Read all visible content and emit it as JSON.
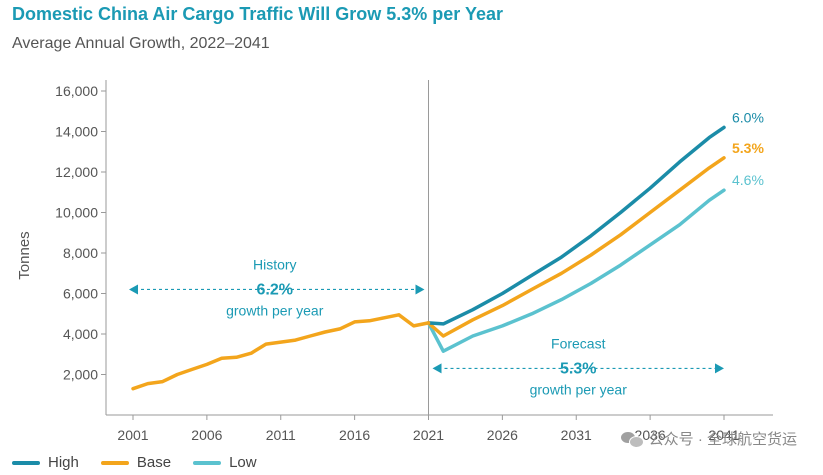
{
  "chart_data": {
    "type": "line",
    "title": "Domestic China Air Cargo Traffic Will Grow 5.3% per Year",
    "subtitle": "Average Annual Growth, 2022–2041",
    "ylabel": "Tonnes",
    "xlabel": "",
    "xlim": [
      1999,
      2046
    ],
    "ylim": [
      0,
      16000
    ],
    "y_ticks": [
      2000,
      4000,
      6000,
      8000,
      10000,
      12000,
      14000,
      16000
    ],
    "y_tick_labels": [
      "2,000",
      "4,000",
      "6,000",
      "8,000",
      "10,000",
      "12,000",
      "14,000",
      "16,000"
    ],
    "x_ticks": [
      2001,
      2006,
      2011,
      2016,
      2021,
      2026,
      2031,
      2036,
      2041
    ],
    "x_tick_labels": [
      "2001",
      "2006",
      "2011",
      "2016",
      "2021",
      "2026",
      "2031",
      "2036",
      "2041"
    ],
    "divider_x": 2021,
    "history": {
      "name": "History",
      "x": [
        2001,
        2002,
        2003,
        2004,
        2005,
        2006,
        2007,
        2008,
        2009,
        2010,
        2011,
        2012,
        2013,
        2014,
        2015,
        2016,
        2017,
        2018,
        2019,
        2020,
        2021
      ],
      "values": [
        1300,
        1550,
        1650,
        2000,
        2250,
        2500,
        2800,
        2850,
        3050,
        3500,
        3600,
        3700,
        3900,
        4100,
        4250,
        4600,
        4650,
        4800,
        4950,
        4400,
        4550
      ]
    },
    "series": [
      {
        "name": "High",
        "color": "#1b8ca8",
        "end_label": "6.0%",
        "x": [
          2021,
          2022,
          2024,
          2026,
          2028,
          2030,
          2032,
          2034,
          2036,
          2038,
          2040,
          2041
        ],
        "values": [
          4550,
          4500,
          5200,
          6000,
          6900,
          7800,
          8850,
          10000,
          11200,
          12500,
          13700,
          14200
        ]
      },
      {
        "name": "Base",
        "color": "#f3a51c",
        "end_label": "5.3%",
        "x": [
          2021,
          2022,
          2024,
          2026,
          2028,
          2030,
          2032,
          2034,
          2036,
          2038,
          2040,
          2041
        ],
        "values": [
          4550,
          3900,
          4700,
          5400,
          6200,
          7000,
          7900,
          8900,
          10000,
          11100,
          12200,
          12700
        ]
      },
      {
        "name": "Low",
        "color": "#5bc2cf",
        "end_label": "4.6%",
        "x": [
          2021,
          2022,
          2024,
          2026,
          2028,
          2030,
          2032,
          2034,
          2036,
          2038,
          2040,
          2041
        ],
        "values": [
          4550,
          3150,
          3900,
          4400,
          5000,
          5700,
          6500,
          7400,
          8400,
          9400,
          10600,
          11100
        ]
      }
    ],
    "annotations": [
      {
        "id": "history",
        "label": "History",
        "value": "6.2%",
        "caption": "growth per year",
        "x_from": 2001,
        "x_to": 2021,
        "y": 6200
      },
      {
        "id": "forecast",
        "label": "Forecast",
        "value": "5.3%",
        "caption": "growth per year",
        "x_from": 2021,
        "x_to": 2041,
        "y": 2300
      }
    ],
    "legend": [
      "High",
      "Base",
      "Low"
    ],
    "legend_position": "bottom-left"
  },
  "watermark": {
    "text": "公众号 · 全球航空货运"
  }
}
